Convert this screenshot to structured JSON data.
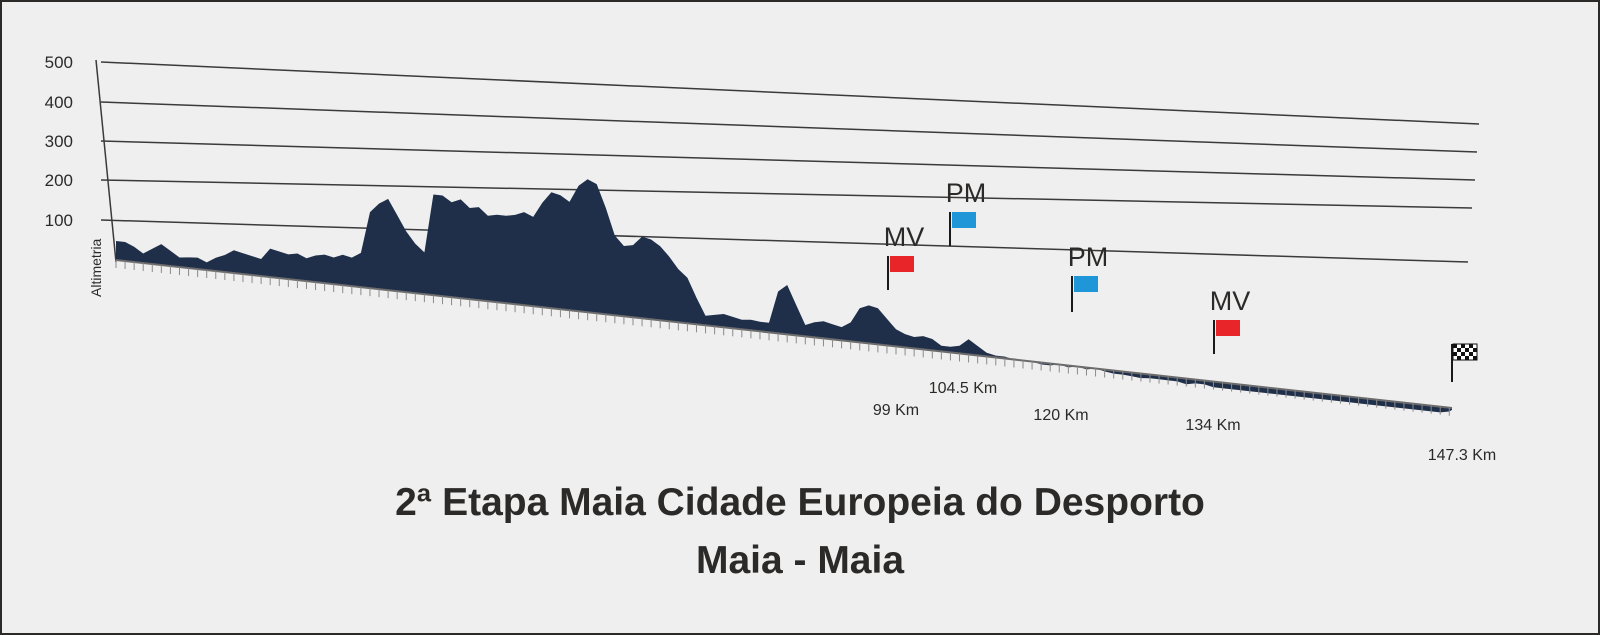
{
  "title": "2ª Etapa Maia Cidade Europeia do Desporto",
  "subtitle": "Maia - Maia",
  "chart_data": {
    "type": "area",
    "ylabel": "Altimetria",
    "ylim": [
      0,
      500
    ],
    "yticks": [
      "100",
      "200",
      "300",
      "400",
      "500"
    ],
    "xlim": [
      0,
      147.3
    ],
    "grid": true,
    "color": "#1f2f4a",
    "km_labels": [
      {
        "km": 99,
        "label": "99 Km"
      },
      {
        "km": 104.5,
        "label": "104.5 Km"
      },
      {
        "km": 120,
        "label": "120 Km"
      },
      {
        "km": 134,
        "label": "134 Km"
      },
      {
        "km": 147.3,
        "label": "147.3 Km"
      }
    ],
    "markers": [
      {
        "label": "MV",
        "km": 99,
        "color": "#e8262a"
      },
      {
        "label": "PM",
        "km": 104.5,
        "color": "#1e96d8"
      },
      {
        "label": "PM",
        "km": 120,
        "color": "#1e96d8"
      },
      {
        "label": "MV",
        "km": 134,
        "color": "#e8262a"
      },
      {
        "label": "",
        "km": 147.3,
        "type": "finish-flag"
      }
    ],
    "profile": [
      [
        0,
        50
      ],
      [
        1,
        50
      ],
      [
        2,
        40
      ],
      [
        3,
        25
      ],
      [
        4,
        40
      ],
      [
        5,
        55
      ],
      [
        6,
        40
      ],
      [
        7,
        25
      ],
      [
        8,
        28
      ],
      [
        9,
        30
      ],
      [
        10,
        20
      ],
      [
        11,
        35
      ],
      [
        12,
        45
      ],
      [
        13,
        60
      ],
      [
        14,
        55
      ],
      [
        15,
        50
      ],
      [
        16,
        45
      ],
      [
        17,
        75
      ],
      [
        18,
        70
      ],
      [
        19,
        65
      ],
      [
        20,
        70
      ],
      [
        21,
        60
      ],
      [
        22,
        70
      ],
      [
        23,
        75
      ],
      [
        24,
        70
      ],
      [
        25,
        80
      ],
      [
        26,
        75
      ],
      [
        27,
        90
      ],
      [
        28,
        200
      ],
      [
        29,
        225
      ],
      [
        30,
        240
      ],
      [
        31,
        200
      ],
      [
        32,
        160
      ],
      [
        33,
        130
      ],
      [
        34,
        110
      ],
      [
        35,
        265
      ],
      [
        36,
        265
      ],
      [
        37,
        250
      ],
      [
        38,
        260
      ],
      [
        39,
        240
      ],
      [
        40,
        245
      ],
      [
        41,
        225
      ],
      [
        42,
        230
      ],
      [
        43,
        230
      ],
      [
        44,
        235
      ],
      [
        45,
        245
      ],
      [
        46,
        235
      ],
      [
        47,
        275
      ],
      [
        48,
        305
      ],
      [
        49,
        300
      ],
      [
        50,
        285
      ],
      [
        51,
        330
      ],
      [
        52,
        350
      ],
      [
        53,
        340
      ],
      [
        54,
        280
      ],
      [
        55,
        210
      ],
      [
        56,
        185
      ],
      [
        57,
        190
      ],
      [
        58,
        215
      ],
      [
        59,
        210
      ],
      [
        60,
        195
      ],
      [
        61,
        170
      ],
      [
        62,
        140
      ],
      [
        63,
        120
      ],
      [
        64,
        70
      ],
      [
        65,
        25
      ],
      [
        66,
        30
      ],
      [
        67,
        35
      ],
      [
        68,
        30
      ],
      [
        69,
        25
      ],
      [
        70,
        28
      ],
      [
        71,
        25
      ],
      [
        72,
        25
      ],
      [
        73,
        110
      ],
      [
        74,
        130
      ],
      [
        75,
        80
      ],
      [
        76,
        30
      ],
      [
        77,
        40
      ],
      [
        78,
        45
      ],
      [
        79,
        40
      ],
      [
        80,
        35
      ],
      [
        81,
        50
      ],
      [
        82,
        90
      ],
      [
        83,
        100
      ],
      [
        84,
        95
      ],
      [
        85,
        70
      ],
      [
        86,
        45
      ],
      [
        87,
        35
      ],
      [
        88,
        30
      ],
      [
        89,
        35
      ],
      [
        90,
        30
      ],
      [
        91,
        15
      ],
      [
        92,
        15
      ],
      [
        93,
        20
      ],
      [
        94,
        40
      ],
      [
        95,
        25
      ],
      [
        96,
        10
      ],
      [
        97,
        5
      ],
      [
        98,
        5
      ],
      [
        99,
        0
      ],
      [
        100,
        0
      ],
      [
        101,
        0
      ],
      [
        102,
        -5
      ],
      [
        103,
        -5
      ],
      [
        104,
        0
      ],
      [
        105,
        -5
      ],
      [
        106,
        0
      ],
      [
        107,
        -5
      ],
      [
        108,
        0
      ],
      [
        109,
        -5
      ],
      [
        110,
        -8
      ],
      [
        111,
        -8
      ],
      [
        112,
        -10
      ],
      [
        113,
        -12
      ],
      [
        114,
        -10
      ],
      [
        115,
        -10
      ],
      [
        116,
        -10
      ],
      [
        117,
        -10
      ],
      [
        118,
        -15
      ],
      [
        119,
        -10
      ],
      [
        120,
        -10
      ],
      [
        121,
        -15
      ],
      [
        122,
        -15
      ],
      [
        123,
        -15
      ],
      [
        124,
        -15
      ],
      [
        125,
        -15
      ],
      [
        126,
        -15
      ],
      [
        127,
        -15
      ],
      [
        128,
        -15
      ],
      [
        129,
        -15
      ],
      [
        130,
        -15
      ],
      [
        131,
        -15
      ],
      [
        132,
        -15
      ],
      [
        133,
        -15
      ],
      [
        134,
        -15
      ],
      [
        135,
        -15
      ],
      [
        136,
        -15
      ],
      [
        137,
        -15
      ],
      [
        138,
        -15
      ],
      [
        139,
        -15
      ],
      [
        140,
        -15
      ],
      [
        141,
        -15
      ],
      [
        142,
        -15
      ],
      [
        143,
        -15
      ],
      [
        144,
        -15
      ],
      [
        145,
        -15
      ],
      [
        146,
        -15
      ],
      [
        147,
        -10
      ],
      [
        147.3,
        -5
      ]
    ]
  }
}
